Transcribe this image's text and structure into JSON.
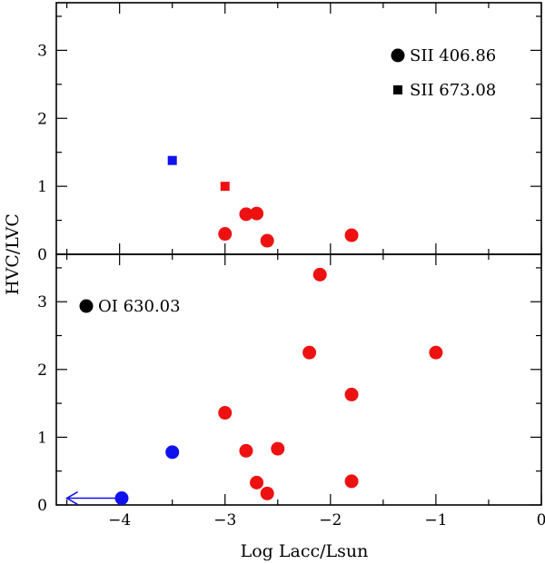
{
  "chart_data": [
    {
      "panel": "top",
      "type": "scatter",
      "xlim": [
        -4.6,
        0
      ],
      "ylim": [
        0,
        3.7
      ],
      "xticks": [
        -4,
        -3,
        -2,
        -1,
        0
      ],
      "yticks": [
        0,
        1,
        2,
        3
      ],
      "ytick_labels": [
        "0",
        "1",
        "2",
        "3"
      ],
      "legend": [
        {
          "marker": "circle",
          "label": "SII 406.86"
        },
        {
          "marker": "square",
          "label": "SII 673.08"
        }
      ],
      "series": [
        {
          "marker": "circle",
          "color": "#ee1111",
          "points": [
            {
              "x": -3.0,
              "y": 0.3
            },
            {
              "x": -2.8,
              "y": 0.59
            },
            {
              "x": -2.7,
              "y": 0.6
            },
            {
              "x": -2.6,
              "y": 0.2
            },
            {
              "x": -1.8,
              "y": 0.28
            }
          ]
        },
        {
          "marker": "square",
          "color": "#ee1111",
          "points": [
            {
              "x": -3.0,
              "y": 1.0
            }
          ]
        },
        {
          "marker": "square",
          "color": "#1111ee",
          "points": [
            {
              "x": -3.5,
              "y": 1.38
            }
          ]
        }
      ]
    },
    {
      "panel": "bottom",
      "type": "scatter",
      "xlim": [
        -4.6,
        0
      ],
      "ylim": [
        0,
        3.7
      ],
      "xticks": [
        -4,
        -3,
        -2,
        -1,
        0
      ],
      "yticks": [
        0,
        1,
        2,
        3
      ],
      "xtick_labels": [
        "−4",
        "−3",
        "−2",
        "−1",
        "0"
      ],
      "ytick_labels": [
        "0",
        "1",
        "2",
        "3"
      ],
      "xlabel": "Log Lacc/Lsun",
      "legend": [
        {
          "marker": "circle",
          "label": "OI 630.03"
        }
      ],
      "upper_limit_arrow": {
        "x_from": -4.0,
        "x_to": -4.5,
        "y": 0.1,
        "color": "#1111ee"
      },
      "series": [
        {
          "marker": "circle",
          "color": "#ee1111",
          "points": [
            {
              "x": -2.1,
              "y": 3.4
            },
            {
              "x": -2.2,
              "y": 2.25
            },
            {
              "x": -1.0,
              "y": 2.25
            },
            {
              "x": -1.8,
              "y": 1.63
            },
            {
              "x": -3.0,
              "y": 1.36
            },
            {
              "x": -2.8,
              "y": 0.8
            },
            {
              "x": -2.5,
              "y": 0.83
            },
            {
              "x": -2.7,
              "y": 0.33
            },
            {
              "x": -2.6,
              "y": 0.17
            },
            {
              "x": -1.8,
              "y": 0.35
            }
          ]
        },
        {
          "marker": "circle",
          "color": "#1111ee",
          "points": [
            {
              "x": -3.5,
              "y": 0.78
            },
            {
              "x": -3.98,
              "y": 0.1
            }
          ]
        }
      ]
    }
  ],
  "shared": {
    "ylabel": "HVC/LVC"
  }
}
